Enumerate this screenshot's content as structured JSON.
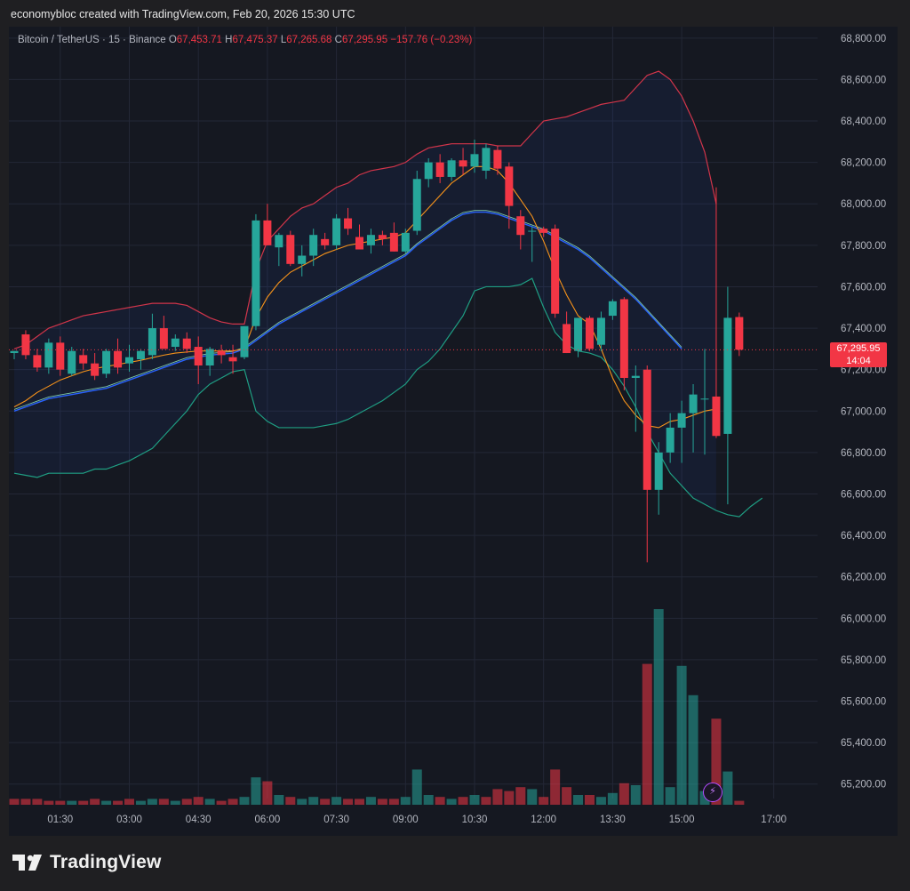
{
  "header": {
    "creator_line": "economybloc created with TradingView.com, Feb 20, 2026 15:30 UTC"
  },
  "legend": {
    "symbol": "Bitcoin / TetherUS · 15 · Binance",
    "o_label": "O",
    "o_value": "67,453.71",
    "h_label": "H",
    "h_value": "67,475.37",
    "l_label": "L",
    "l_value": "67,265.68",
    "c_label": "C",
    "c_value": "67,295.95",
    "change": "−157.76 (−0.23%)"
  },
  "last_price": {
    "value": "67,295.95",
    "countdown": "14:04"
  },
  "brand": {
    "name": "TradingView"
  },
  "colors": {
    "up": "#26a69a",
    "down": "#f23645",
    "bb_upper": "#d1354a",
    "bb_lower": "#1f9e83",
    "ma_fast": "#f7931a",
    "ma_slow": "#2962ff",
    "background": "#151821"
  },
  "chart_data": {
    "type": "candlestick",
    "title": "Bitcoin / TetherUS · 15 · Binance",
    "y_ticks": [
      "68,800.00",
      "68,600.00",
      "68,400.00",
      "68,200.00",
      "68,000.00",
      "67,800.00",
      "67,600.00",
      "67,400.00",
      "67,200.00",
      "67,000.00",
      "66,800.00",
      "66,600.00",
      "66,400.00",
      "66,200.00",
      "66,000.00",
      "65,800.00",
      "65,600.00",
      "65,400.00",
      "65,200.00"
    ],
    "y_tick_values": [
      68800,
      68600,
      68400,
      68200,
      68000,
      67800,
      67600,
      67400,
      67200,
      67000,
      66800,
      66600,
      66400,
      66200,
      66000,
      65800,
      65600,
      65400,
      65200
    ],
    "x_ticks": [
      {
        "label": "01:30",
        "index": 4
      },
      {
        "label": "03:00",
        "index": 10
      },
      {
        "label": "04:30",
        "index": 16
      },
      {
        "label": "06:00",
        "index": 22
      },
      {
        "label": "07:30",
        "index": 28
      },
      {
        "label": "09:00",
        "index": 34
      },
      {
        "label": "10:30",
        "index": 40
      },
      {
        "label": "12:00",
        "index": 46
      },
      {
        "label": "13:30",
        "index": 52
      },
      {
        "label": "15:00",
        "index": 58
      },
      {
        "label": "17:00",
        "index": 66
      }
    ],
    "ylim": [
      64950,
      68855
    ],
    "candles": [
      {
        "o": 67280,
        "h": 67290,
        "l": 67250,
        "c": 67290
      },
      {
        "o": 67370,
        "h": 67390,
        "l": 67250,
        "c": 67270
      },
      {
        "o": 67270,
        "h": 67300,
        "l": 67190,
        "c": 67210
      },
      {
        "o": 67210,
        "h": 67350,
        "l": 67180,
        "c": 67330
      },
      {
        "o": 67330,
        "h": 67360,
        "l": 67170,
        "c": 67200
      },
      {
        "o": 67180,
        "h": 67310,
        "l": 67170,
        "c": 67290
      },
      {
        "o": 67270,
        "h": 67300,
        "l": 67200,
        "c": 67230
      },
      {
        "o": 67230,
        "h": 67280,
        "l": 67150,
        "c": 67170
      },
      {
        "o": 67180,
        "h": 67300,
        "l": 67160,
        "c": 67290
      },
      {
        "o": 67290,
        "h": 67350,
        "l": 67180,
        "c": 67210
      },
      {
        "o": 67230,
        "h": 67320,
        "l": 67190,
        "c": 67260
      },
      {
        "o": 67250,
        "h": 67300,
        "l": 67200,
        "c": 67290
      },
      {
        "o": 67270,
        "h": 67470,
        "l": 67250,
        "c": 67400
      },
      {
        "o": 67400,
        "h": 67460,
        "l": 67310,
        "c": 67300
      },
      {
        "o": 67310,
        "h": 67370,
        "l": 67290,
        "c": 67350
      },
      {
        "o": 67350,
        "h": 67380,
        "l": 67280,
        "c": 67300
      },
      {
        "o": 67310,
        "h": 67360,
        "l": 67130,
        "c": 67220
      },
      {
        "o": 67220,
        "h": 67310,
        "l": 67170,
        "c": 67300
      },
      {
        "o": 67290,
        "h": 67320,
        "l": 67230,
        "c": 67270
      },
      {
        "o": 67260,
        "h": 67320,
        "l": 67180,
        "c": 67240
      },
      {
        "o": 67260,
        "h": 67410,
        "l": 67250,
        "c": 67410
      },
      {
        "o": 67410,
        "h": 67950,
        "l": 67390,
        "c": 67920
      },
      {
        "o": 67920,
        "h": 68000,
        "l": 67800,
        "c": 67800
      },
      {
        "o": 67790,
        "h": 67860,
        "l": 67700,
        "c": 67850
      },
      {
        "o": 67850,
        "h": 67870,
        "l": 67700,
        "c": 67710
      },
      {
        "o": 67710,
        "h": 67800,
        "l": 67650,
        "c": 67750
      },
      {
        "o": 67750,
        "h": 67880,
        "l": 67700,
        "c": 67850
      },
      {
        "o": 67830,
        "h": 67860,
        "l": 67780,
        "c": 67800
      },
      {
        "o": 67800,
        "h": 67950,
        "l": 67780,
        "c": 67930
      },
      {
        "o": 67930,
        "h": 67980,
        "l": 67850,
        "c": 67880
      },
      {
        "o": 67840,
        "h": 67900,
        "l": 67780,
        "c": 67780
      },
      {
        "o": 67800,
        "h": 67880,
        "l": 67760,
        "c": 67850
      },
      {
        "o": 67850,
        "h": 67870,
        "l": 67800,
        "c": 67830
      },
      {
        "o": 67860,
        "h": 67910,
        "l": 67770,
        "c": 67770
      },
      {
        "o": 67770,
        "h": 67880,
        "l": 67760,
        "c": 67860
      },
      {
        "o": 67870,
        "h": 68160,
        "l": 67850,
        "c": 68120
      },
      {
        "o": 68120,
        "h": 68220,
        "l": 68080,
        "c": 68200
      },
      {
        "o": 68200,
        "h": 68240,
        "l": 68100,
        "c": 68130
      },
      {
        "o": 68130,
        "h": 68220,
        "l": 68110,
        "c": 68210
      },
      {
        "o": 68210,
        "h": 68270,
        "l": 68140,
        "c": 68180
      },
      {
        "o": 68180,
        "h": 68310,
        "l": 68150,
        "c": 68240
      },
      {
        "o": 68160,
        "h": 68290,
        "l": 68120,
        "c": 68270
      },
      {
        "o": 68260,
        "h": 68280,
        "l": 68140,
        "c": 68170
      },
      {
        "o": 68180,
        "h": 68200,
        "l": 67880,
        "c": 67990
      },
      {
        "o": 67940,
        "h": 67970,
        "l": 67780,
        "c": 67850
      },
      {
        "o": 67870,
        "h": 67890,
        "l": 67720,
        "c": 67870
      },
      {
        "o": 67880,
        "h": 67890,
        "l": 67840,
        "c": 67860
      },
      {
        "o": 67880,
        "h": 67900,
        "l": 67450,
        "c": 67470
      },
      {
        "o": 67420,
        "h": 67480,
        "l": 67280,
        "c": 67280
      },
      {
        "o": 67290,
        "h": 67450,
        "l": 67260,
        "c": 67450
      },
      {
        "o": 67450,
        "h": 67460,
        "l": 67290,
        "c": 67300
      },
      {
        "o": 67320,
        "h": 67480,
        "l": 67290,
        "c": 67450
      },
      {
        "o": 67460,
        "h": 67540,
        "l": 67440,
        "c": 67530
      },
      {
        "o": 67540,
        "h": 67550,
        "l": 67100,
        "c": 67160
      },
      {
        "o": 67160,
        "h": 67220,
        "l": 66900,
        "c": 67170
      },
      {
        "o": 67200,
        "h": 67220,
        "l": 66270,
        "c": 66620
      },
      {
        "o": 66620,
        "h": 66850,
        "l": 66500,
        "c": 66800
      },
      {
        "o": 66800,
        "h": 66990,
        "l": 66750,
        "c": 66920
      },
      {
        "o": 66920,
        "h": 67050,
        "l": 66750,
        "c": 66990
      },
      {
        "o": 66990,
        "h": 67130,
        "l": 66800,
        "c": 67080
      },
      {
        "o": 67060,
        "h": 67300,
        "l": 66790,
        "c": 67060
      },
      {
        "o": 67070,
        "h": 68080,
        "l": 66870,
        "c": 66880
      },
      {
        "o": 66890,
        "h": 67600,
        "l": 66550,
        "c": 67450
      },
      {
        "o": 67453.71,
        "h": 67475.37,
        "l": 67265.68,
        "c": 67295.95
      }
    ],
    "volume": [
      {
        "v": 3,
        "up": false
      },
      {
        "v": 3,
        "up": false
      },
      {
        "v": 3,
        "up": false
      },
      {
        "v": 2,
        "up": false
      },
      {
        "v": 2,
        "up": false
      },
      {
        "v": 2,
        "up": true
      },
      {
        "v": 2,
        "up": false
      },
      {
        "v": 3,
        "up": false
      },
      {
        "v": 2,
        "up": true
      },
      {
        "v": 2,
        "up": false
      },
      {
        "v": 3,
        "up": false
      },
      {
        "v": 2,
        "up": true
      },
      {
        "v": 3,
        "up": true
      },
      {
        "v": 3,
        "up": false
      },
      {
        "v": 2,
        "up": true
      },
      {
        "v": 3,
        "up": false
      },
      {
        "v": 4,
        "up": false
      },
      {
        "v": 3,
        "up": true
      },
      {
        "v": 2,
        "up": false
      },
      {
        "v": 3,
        "up": false
      },
      {
        "v": 4,
        "up": true
      },
      {
        "v": 14,
        "up": true
      },
      {
        "v": 12,
        "up": false
      },
      {
        "v": 5,
        "up": true
      },
      {
        "v": 4,
        "up": false
      },
      {
        "v": 3,
        "up": true
      },
      {
        "v": 4,
        "up": true
      },
      {
        "v": 3,
        "up": false
      },
      {
        "v": 4,
        "up": true
      },
      {
        "v": 3,
        "up": false
      },
      {
        "v": 3,
        "up": false
      },
      {
        "v": 4,
        "up": true
      },
      {
        "v": 3,
        "up": false
      },
      {
        "v": 3,
        "up": false
      },
      {
        "v": 4,
        "up": true
      },
      {
        "v": 18,
        "up": true
      },
      {
        "v": 5,
        "up": true
      },
      {
        "v": 4,
        "up": false
      },
      {
        "v": 3,
        "up": true
      },
      {
        "v": 4,
        "up": false
      },
      {
        "v": 5,
        "up": true
      },
      {
        "v": 4,
        "up": false
      },
      {
        "v": 8,
        "up": false
      },
      {
        "v": 7,
        "up": false
      },
      {
        "v": 9,
        "up": false
      },
      {
        "v": 8,
        "up": true
      },
      {
        "v": 4,
        "up": false
      },
      {
        "v": 18,
        "up": false
      },
      {
        "v": 9,
        "up": false
      },
      {
        "v": 5,
        "up": true
      },
      {
        "v": 5,
        "up": false
      },
      {
        "v": 4,
        "up": true
      },
      {
        "v": 6,
        "up": true
      },
      {
        "v": 11,
        "up": false
      },
      {
        "v": 10,
        "up": true
      },
      {
        "v": 72,
        "up": false
      },
      {
        "v": 100,
        "up": true
      },
      {
        "v": 9,
        "up": true
      },
      {
        "v": 71,
        "up": true
      },
      {
        "v": 56,
        "up": true
      },
      {
        "v": 7,
        "up": true
      },
      {
        "v": 44,
        "up": false
      },
      {
        "v": 17,
        "up": true
      },
      {
        "v": 2,
        "up": false
      }
    ],
    "bb_upper": [
      67300,
      67320,
      67360,
      67400,
      67420,
      67440,
      67460,
      67470,
      67480,
      67490,
      67500,
      67510,
      67520,
      67520,
      67520,
      67510,
      67480,
      67450,
      67430,
      67420,
      67420,
      67680,
      67820,
      67880,
      67940,
      67980,
      68000,
      68040,
      68080,
      68100,
      68140,
      68160,
      68170,
      68180,
      68200,
      68240,
      68270,
      68280,
      68290,
      68290,
      68290,
      68290,
      68280,
      68280,
      68280,
      68340,
      68400,
      68410,
      68420,
      68440,
      68460,
      68480,
      68490,
      68500,
      68560,
      68620,
      68640,
      68600,
      68520,
      68400,
      68250,
      68000
    ],
    "bb_lower": [
      66700,
      66690,
      66680,
      66700,
      66700,
      66700,
      66700,
      66720,
      66720,
      66740,
      66760,
      66790,
      66820,
      66880,
      66940,
      67000,
      67080,
      67130,
      67160,
      67190,
      67200,
      67000,
      66950,
      66920,
      66920,
      66920,
      66920,
      66930,
      66940,
      66960,
      66990,
      67020,
      67050,
      67090,
      67130,
      67200,
      67240,
      67300,
      67380,
      67460,
      67580,
      67600,
      67600,
      67600,
      67610,
      67640,
      67500,
      67380,
      67320,
      67290,
      67280,
      67260,
      67200,
      67120,
      67020,
      66900,
      66800,
      66700,
      66640,
      66580,
      66550,
      66520,
      66500,
      66490,
      66540,
      66580
    ],
    "ma_fast": [
      67020,
      67050,
      67090,
      67120,
      67150,
      67170,
      67190,
      67205,
      67215,
      67225,
      67235,
      67245,
      67258,
      67270,
      67280,
      67285,
      67290,
      67290,
      67290,
      67290,
      67300,
      67450,
      67550,
      67620,
      67670,
      67700,
      67730,
      67760,
      67780,
      67800,
      67810,
      67820,
      67830,
      67840,
      67860,
      67920,
      67980,
      68040,
      68100,
      68140,
      68180,
      68180,
      68160,
      68100,
      68020,
      67940,
      67820,
      67680,
      67560,
      67460,
      67420,
      67300,
      67160,
      67050,
      66980,
      66930,
      66920,
      66950,
      66960,
      66980,
      67000,
      67010
    ],
    "ma_slow": [
      67000,
      67020,
      67040,
      67060,
      67070,
      67080,
      67090,
      67100,
      67110,
      67130,
      67150,
      67170,
      67190,
      67210,
      67230,
      67250,
      67260,
      67270,
      67275,
      67280,
      67300,
      67340,
      67380,
      67420,
      67450,
      67480,
      67510,
      67540,
      67570,
      67600,
      67630,
      67660,
      67690,
      67720,
      67750,
      67800,
      67840,
      67880,
      67920,
      67950,
      67960,
      67960,
      67950,
      67930,
      67910,
      67890,
      67870,
      67840,
      67810,
      67780,
      67740,
      67690,
      67640,
      67590,
      67540,
      67480,
      67420,
      67360,
      67300
    ]
  }
}
